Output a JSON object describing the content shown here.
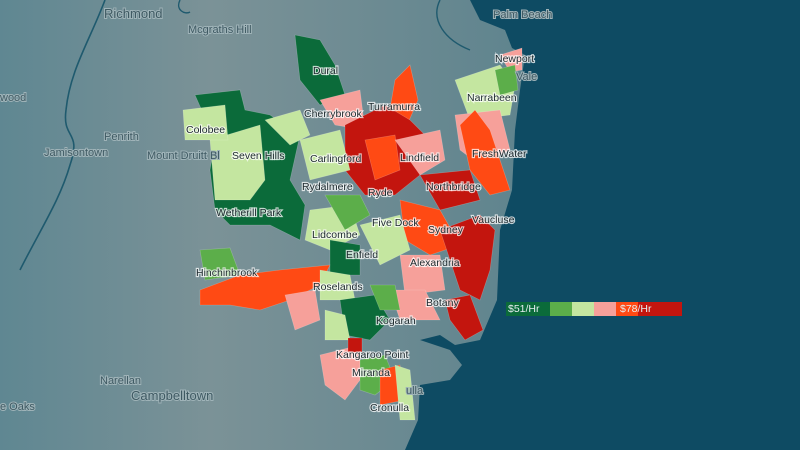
{
  "colors": {
    "water": "#0e4b63",
    "land": "#6e8d95",
    "scale": [
      "#0b6b3a",
      "#5cae4a",
      "#c4e6a0",
      "#f6a09a",
      "#ff4a14",
      "#c3150e"
    ]
  },
  "legend": {
    "min_label": "$51/Hr",
    "max_label": "$78/Hr"
  },
  "places": [
    "Richmond",
    "Mcgraths Hill",
    "wood",
    "Penrith",
    "Jamisontown",
    "Mount Druitt Bl",
    "Palm Beach",
    "Vale",
    "Narellan",
    "Campbelltown",
    "e Oaks",
    "ulla"
  ],
  "suburbs": [
    "Dural",
    "Cherrybrook",
    "Colobee",
    "Seven Hills",
    "Carlingford",
    "Lindfield",
    "FreshWater",
    "Turramurra",
    "Rydalmere",
    "Ryde",
    "Northbridge",
    "Wetherill Park",
    "Lidcombe",
    "Five Dock",
    "Sydney",
    "Vaucluse",
    "Enfield",
    "Alexandria",
    "Hinchinbrook",
    "Roselands",
    "Botany",
    "Kogarah",
    "Kangaroo Point",
    "Miranda",
    "Cronulla",
    "Newport",
    "Narrabeen"
  ]
}
